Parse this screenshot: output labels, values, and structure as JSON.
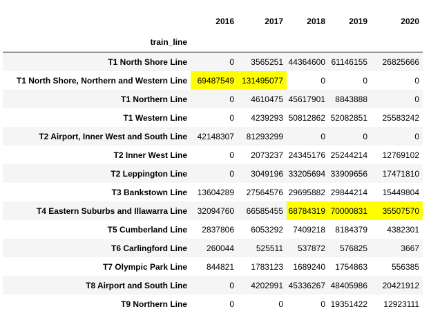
{
  "table": {
    "index_name": "train_line",
    "columns": [
      "2016",
      "2017",
      "2018",
      "2019",
      "2020"
    ],
    "highlight_color": "#ffff00",
    "rows": [
      {
        "line": "T1 North Shore Line",
        "values": [
          "0",
          "3565251",
          "44364600",
          "61146155",
          "26825666"
        ],
        "highlight": [
          false,
          false,
          false,
          false,
          false
        ]
      },
      {
        "line": "T1 North Shore, Northern and Western Line",
        "values": [
          "69487549",
          "131495077",
          "0",
          "0",
          "0"
        ],
        "highlight": [
          true,
          true,
          false,
          false,
          false
        ]
      },
      {
        "line": "T1 Northern Line",
        "values": [
          "0",
          "4610475",
          "45617901",
          "8843888",
          "0"
        ],
        "highlight": [
          false,
          false,
          false,
          false,
          false
        ]
      },
      {
        "line": "T1 Western Line",
        "values": [
          "0",
          "4239293",
          "50812862",
          "52082851",
          "25583242"
        ],
        "highlight": [
          false,
          false,
          false,
          false,
          false
        ]
      },
      {
        "line": "T2 Airport, Inner West and South Line",
        "values": [
          "42148307",
          "81293299",
          "0",
          "0",
          "0"
        ],
        "highlight": [
          false,
          false,
          false,
          false,
          false
        ]
      },
      {
        "line": "T2 Inner West Line",
        "values": [
          "0",
          "2073237",
          "24345176",
          "25244214",
          "12769102"
        ],
        "highlight": [
          false,
          false,
          false,
          false,
          false
        ]
      },
      {
        "line": "T2 Leppington Line",
        "values": [
          "0",
          "3049196",
          "33205694",
          "33909656",
          "17471810"
        ],
        "highlight": [
          false,
          false,
          false,
          false,
          false
        ]
      },
      {
        "line": "T3 Bankstown Line",
        "values": [
          "13604289",
          "27564576",
          "29695882",
          "29844214",
          "15449804"
        ],
        "highlight": [
          false,
          false,
          false,
          false,
          false
        ]
      },
      {
        "line": "T4 Eastern Suburbs and Illawarra Line",
        "values": [
          "32094760",
          "66585455",
          "68784319",
          "70000831",
          "35507570"
        ],
        "highlight": [
          false,
          false,
          true,
          true,
          true
        ]
      },
      {
        "line": "T5 Cumberland Line",
        "values": [
          "2837806",
          "6053292",
          "7409218",
          "8184379",
          "4382301"
        ],
        "highlight": [
          false,
          false,
          false,
          false,
          false
        ]
      },
      {
        "line": "T6 Carlingford Line",
        "values": [
          "260044",
          "525511",
          "537872",
          "576825",
          "3667"
        ],
        "highlight": [
          false,
          false,
          false,
          false,
          false
        ]
      },
      {
        "line": "T7 Olympic Park Line",
        "values": [
          "844821",
          "1783123",
          "1689240",
          "1754863",
          "556385"
        ],
        "highlight": [
          false,
          false,
          false,
          false,
          false
        ]
      },
      {
        "line": "T8 Airport and South Line",
        "values": [
          "0",
          "4202991",
          "45336267",
          "48405986",
          "20421912"
        ],
        "highlight": [
          false,
          false,
          false,
          false,
          false
        ]
      },
      {
        "line": "T9 Northern Line",
        "values": [
          "0",
          "0",
          "0",
          "19351422",
          "12923111"
        ],
        "highlight": [
          false,
          false,
          false,
          false,
          false
        ]
      }
    ]
  }
}
